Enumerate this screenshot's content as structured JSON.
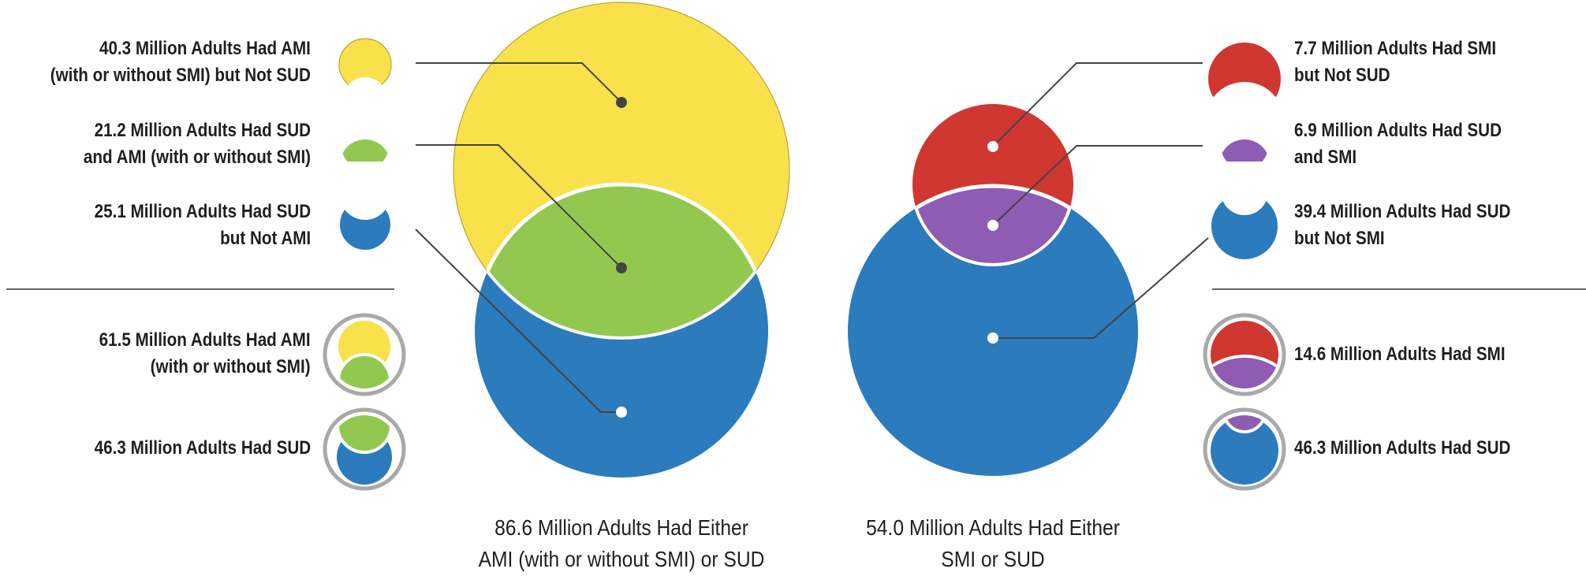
{
  "colors": {
    "ami_not_sud": "#f9e14b",
    "sud_and_ami": "#92c850",
    "sud_not_ami": "#2b7bbd",
    "smi_not_sud": "#cf3730",
    "sud_and_smi": "#8f5cb3",
    "sud_not_smi": "#2b7bbd",
    "leader": "#444444",
    "ring": "#a9a9a9",
    "rule": "#333333"
  },
  "left": {
    "items": [
      {
        "line1": "40.3 Million Adults Had AMI",
        "line2": "(with or without SMI) but Not SUD",
        "icon": "yellow-crescent-icon",
        "value_millions": 40.3
      },
      {
        "line1": "21.2 Million Adults Had SUD",
        "line2": "and AMI (with or without SMI)",
        "icon": "green-lens-icon",
        "value_millions": 21.2
      },
      {
        "line1": "25.1 Million Adults Had SUD",
        "line2": "but Not AMI",
        "icon": "blue-crescent-icon",
        "value_millions": 25.1
      }
    ],
    "totals": [
      {
        "line1": "61.5 Million Adults Had AMI",
        "line2": "(with or without SMI)",
        "icon": "ami-total-icon",
        "value_millions": 61.5
      },
      {
        "line1": "46.3 Million Adults Had SUD",
        "line2": "",
        "icon": "sud-total-icon",
        "value_millions": 46.3
      }
    ],
    "caption": {
      "line1": "86.6 Million Adults Had Either",
      "line2": "AMI (with or without SMI) or SUD",
      "value_millions": 86.6
    }
  },
  "right": {
    "items": [
      {
        "line1": "7.7 Million Adults Had SMI",
        "line2": "but Not SUD",
        "icon": "red-crescent-icon",
        "value_millions": 7.7
      },
      {
        "line1": "6.9 Million Adults Had SUD",
        "line2": "and SMI",
        "icon": "purple-lens-icon",
        "value_millions": 6.9
      },
      {
        "line1": "39.4 Million Adults Had SUD",
        "line2": "but Not SMI",
        "icon": "blue-crescent-icon",
        "value_millions": 39.4
      }
    ],
    "totals": [
      {
        "line1": "14.6 Million Adults Had SMI",
        "line2": "",
        "icon": "smi-total-icon",
        "value_millions": 14.6
      },
      {
        "line1": "46.3 Million Adults Had SUD",
        "line2": "",
        "icon": "sud-total-icon",
        "value_millions": 46.3
      }
    ],
    "caption": {
      "line1": "54.0 Million Adults Had Either",
      "line2": "SMI or SUD",
      "value_millions": 54.0
    }
  }
}
